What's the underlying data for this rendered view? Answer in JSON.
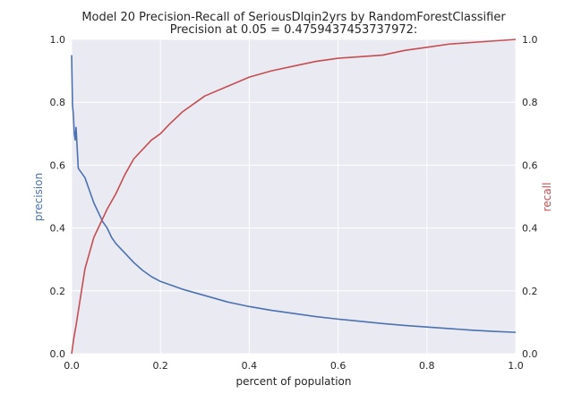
{
  "chart_data": {
    "type": "line",
    "title": "Model 20 Precision-Recall of SeriousDlqin2yrs by RandomForestClassifier",
    "subtitle": "Precision at 0.05 = 0.4759437453737972:",
    "xlabel": "percent of population",
    "ylabel_left": "precision",
    "ylabel_right": "recall",
    "xlim": [
      0.0,
      1.0
    ],
    "ylim_left": [
      0.0,
      1.0
    ],
    "ylim_right": [
      0.0,
      1.0
    ],
    "x_ticks": [
      "0.0",
      "0.2",
      "0.4",
      "0.6",
      "0.8",
      "1.0"
    ],
    "y_ticks_left": [
      "0.0",
      "0.2",
      "0.4",
      "0.6",
      "0.8",
      "1.0"
    ],
    "y_ticks_right": [
      "0.0",
      "0.2",
      "0.4",
      "0.6",
      "0.8",
      "1.0"
    ],
    "grid": true,
    "colors": {
      "precision": "#4c72b0",
      "recall": "#c44e52",
      "background": "#eaeaf2"
    },
    "series": [
      {
        "axis": "left",
        "color": "#4c72b0",
        "x": [
          0.0,
          0.002,
          0.004,
          0.006,
          0.008,
          0.01,
          0.015,
          0.02,
          0.03,
          0.04,
          0.05,
          0.06,
          0.07,
          0.08,
          0.09,
          0.1,
          0.12,
          0.14,
          0.16,
          0.18,
          0.2,
          0.25,
          0.3,
          0.35,
          0.4,
          0.45,
          0.5,
          0.55,
          0.6,
          0.65,
          0.7,
          0.75,
          0.8,
          0.85,
          0.9,
          0.95,
          1.0
        ],
        "y": [
          0.95,
          0.79,
          0.76,
          0.7,
          0.68,
          0.72,
          0.59,
          0.58,
          0.56,
          0.52,
          0.48,
          0.45,
          0.42,
          0.4,
          0.37,
          0.35,
          0.32,
          0.29,
          0.265,
          0.245,
          0.23,
          0.205,
          0.185,
          0.165,
          0.15,
          0.138,
          0.128,
          0.118,
          0.11,
          0.103,
          0.096,
          0.09,
          0.085,
          0.08,
          0.075,
          0.071,
          0.068
        ]
      },
      {
        "axis": "right",
        "color": "#c44e52",
        "x": [
          0.0,
          0.005,
          0.01,
          0.02,
          0.03,
          0.04,
          0.05,
          0.06,
          0.07,
          0.08,
          0.1,
          0.12,
          0.14,
          0.16,
          0.18,
          0.2,
          0.22,
          0.25,
          0.28,
          0.3,
          0.35,
          0.4,
          0.45,
          0.5,
          0.55,
          0.6,
          0.65,
          0.7,
          0.75,
          0.8,
          0.85,
          0.9,
          0.95,
          1.0
        ],
        "y": [
          0.0,
          0.05,
          0.09,
          0.18,
          0.27,
          0.32,
          0.37,
          0.4,
          0.43,
          0.46,
          0.51,
          0.57,
          0.62,
          0.65,
          0.68,
          0.7,
          0.73,
          0.77,
          0.8,
          0.82,
          0.85,
          0.88,
          0.9,
          0.915,
          0.93,
          0.94,
          0.945,
          0.95,
          0.965,
          0.975,
          0.985,
          0.99,
          0.995,
          1.0
        ]
      }
    ]
  }
}
